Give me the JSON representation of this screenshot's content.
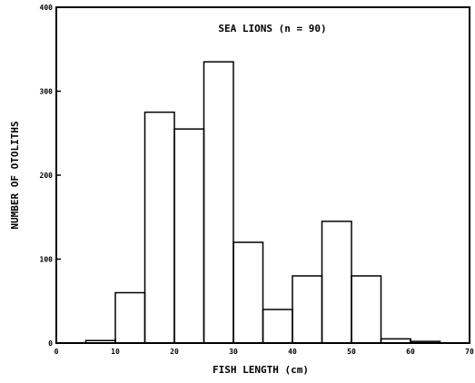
{
  "chart_data": {
    "type": "bar",
    "subtype": "histogram-step",
    "title": "SEA LIONS (n = 90)",
    "xlabel": "FISH LENGTH (cm)",
    "ylabel": "NUMBER OF OTOLITHS",
    "xlim": [
      0,
      70
    ],
    "ylim": [
      0,
      400
    ],
    "x_ticks": [
      "0",
      "10",
      "20",
      "30",
      "40",
      "50",
      "60",
      "70"
    ],
    "x_tick_values": [
      0,
      10,
      20,
      30,
      40,
      50,
      60,
      70
    ],
    "y_ticks": [
      "0",
      "100",
      "200",
      "300",
      "400"
    ],
    "y_tick_values": [
      0,
      100,
      200,
      300,
      400
    ],
    "bin_edges": [
      5,
      10,
      15,
      20,
      25,
      30,
      35,
      40,
      45,
      50,
      55,
      60,
      65
    ],
    "values": [
      3,
      60,
      275,
      255,
      335,
      120,
      40,
      80,
      145,
      80,
      5,
      2
    ],
    "grid": false,
    "legend": "none",
    "line_color": "#000000"
  }
}
